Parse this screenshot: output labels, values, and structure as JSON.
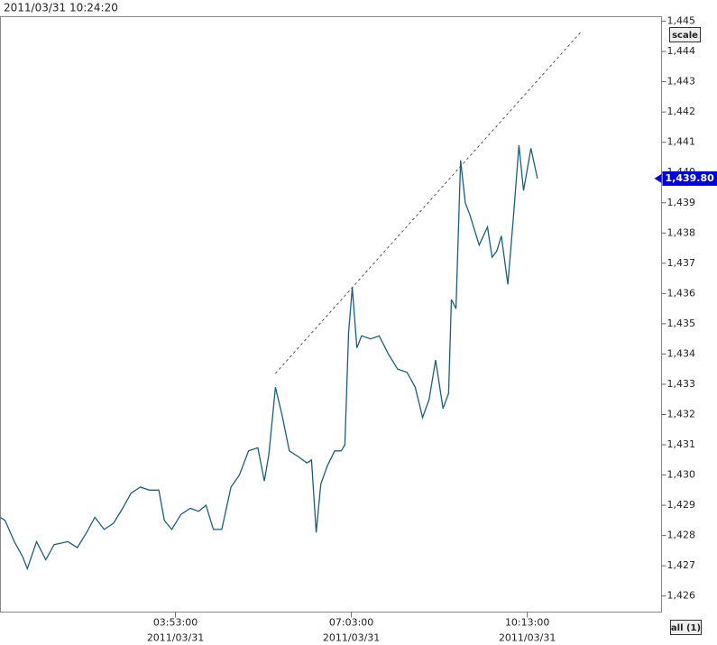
{
  "header": {
    "timestamp": "2011/03/31 10:24:20"
  },
  "buttons": {
    "scale": "scale",
    "all": "all (1)"
  },
  "chart_data": {
    "type": "line",
    "color": "#1b5f7e",
    "x": [
      44,
      49,
      59,
      68,
      73,
      83,
      93,
      102,
      117,
      127,
      137,
      146,
      156,
      166,
      176,
      185,
      195,
      205,
      215,
      221,
      229,
      239,
      249,
      258,
      266,
      274,
      283,
      293,
      302,
      312,
      322,
      329,
      334,
      341,
      348,
      356,
      366,
      375,
      380,
      385,
      390,
      397,
      405,
      412,
      416,
      420,
      424,
      429,
      434,
      444,
      453,
      463,
      473,
      483,
      492,
      500,
      507,
      514,
      522,
      528,
      531,
      536,
      541,
      546,
      551,
      561,
      570,
      575,
      580,
      585,
      592,
      598,
      604,
      609,
      617,
      624
    ],
    "values": [
      1428.6,
      1428.5,
      1427.8,
      1427.3,
      1426.9,
      1427.8,
      1427.2,
      1427.7,
      1427.8,
      1427.6,
      1428.1,
      1428.6,
      1428.2,
      1428.4,
      1428.9,
      1429.4,
      1429.6,
      1429.5,
      1429.5,
      1428.5,
      1428.2,
      1428.7,
      1428.9,
      1428.8,
      1429.0,
      1428.2,
      1428.2,
      1429.6,
      1430.0,
      1430.8,
      1430.9,
      1429.8,
      1430.7,
      1432.9,
      1432.0,
      1430.8,
      1430.6,
      1430.4,
      1430.5,
      1428.1,
      1429.7,
      1430.3,
      1430.8,
      1430.8,
      1431.0,
      1434.7,
      1436.2,
      1434.2,
      1434.6,
      1434.5,
      1434.6,
      1434.0,
      1433.5,
      1433.4,
      1432.9,
      1431.9,
      1432.5,
      1433.8,
      1432.2,
      1432.7,
      1435.8,
      1435.5,
      1440.4,
      1439.0,
      1438.6,
      1437.6,
      1438.2,
      1437.2,
      1437.4,
      1437.9,
      1436.3,
      1438.5,
      1440.9,
      1439.4,
      1440.8,
      1439.8
    ],
    "trendline": {
      "x": [
        341,
        671
      ],
      "values": [
        1433.36,
        1444.65
      ],
      "color": "#555555"
    },
    "last_price": {
      "value": 1439.8,
      "label": "1,439.80",
      "color": "#0000dd"
    },
    "xlim": [
      44,
      758
    ],
    "xticks": [
      {
        "value": 233,
        "label": "03:53:00",
        "date": "2011/03/31"
      },
      {
        "value": 423,
        "label": "07:03:00",
        "date": "2011/03/31"
      },
      {
        "value": 613,
        "label": "10:13:00",
        "date": "2011/03/31"
      }
    ],
    "ylim": [
      1425.47,
      1445.15
    ],
    "yticks": [
      {
        "value": 1426,
        "label": "1,426"
      },
      {
        "value": 1427,
        "label": "1,427"
      },
      {
        "value": 1428,
        "label": "1,428"
      },
      {
        "value": 1429,
        "label": "1,429"
      },
      {
        "value": 1430,
        "label": "1,430"
      },
      {
        "value": 1431,
        "label": "1,431"
      },
      {
        "value": 1432,
        "label": "1,432"
      },
      {
        "value": 1433,
        "label": "1,433"
      },
      {
        "value": 1434,
        "label": "1,434"
      },
      {
        "value": 1435,
        "label": "1,435"
      },
      {
        "value": 1436,
        "label": "1,436"
      },
      {
        "value": 1437,
        "label": "1,437"
      },
      {
        "value": 1438,
        "label": "1,438"
      },
      {
        "value": 1439,
        "label": "1,439"
      },
      {
        "value": 1440,
        "label": "1,440"
      },
      {
        "value": 1441,
        "label": "1,441"
      },
      {
        "value": 1442,
        "label": "1,442"
      },
      {
        "value": 1443,
        "label": "1,443"
      },
      {
        "value": 1444,
        "label": "1,444"
      },
      {
        "value": 1445,
        "label": "1,445"
      }
    ]
  }
}
